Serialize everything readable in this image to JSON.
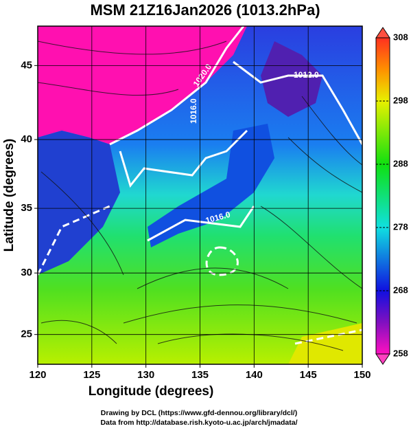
{
  "chart_data": {
    "type": "map",
    "title": "MSM 21Z16Jan2026 (1013.2hPa)",
    "x_label": "Longitude (degrees)",
    "y_label": "Latitude  (degrees)",
    "xlim": [
      120,
      150
    ],
    "xticks": [
      120,
      125,
      130,
      135,
      140,
      145,
      150
    ],
    "ylim": [
      22.5,
      47.5
    ],
    "yticks": [
      25,
      30,
      35,
      40,
      45
    ],
    "yscale": "mercator",
    "grid": true,
    "colorbar": {
      "lim": [
        258,
        308
      ],
      "ticks": [
        258,
        268,
        278,
        288,
        298,
        308
      ]
    },
    "contour_labels": [
      "1020.0",
      "1016.0",
      "1012.0",
      "1016.0"
    ],
    "credits": [
      "Drawing by DCL (https://www.gfd-dennou.org/library/dcl/)",
      "Data from http://database.rish.kyoto-u.ac.jp/arch/jmadata/"
    ]
  }
}
